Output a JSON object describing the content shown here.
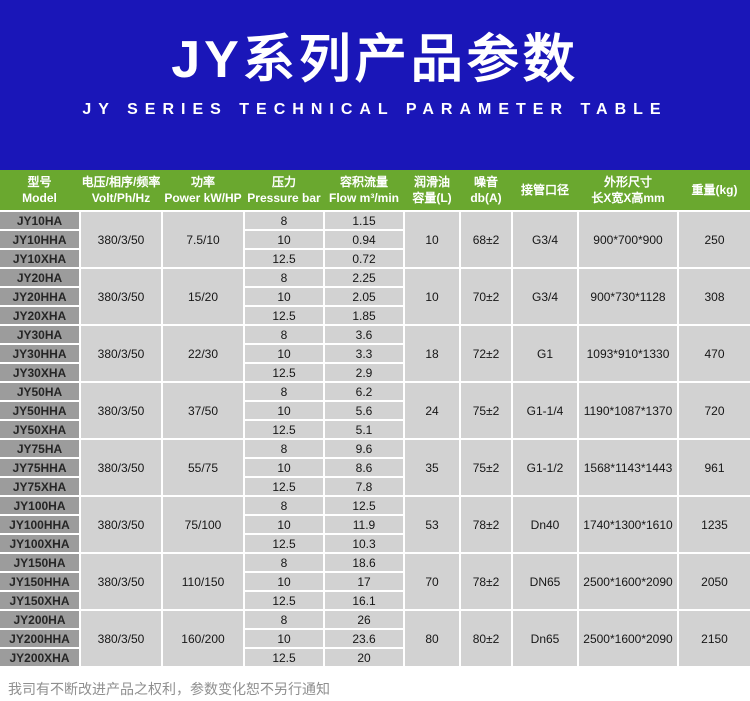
{
  "banner": {
    "title": "JY系列产品参数",
    "subtitle": "JY SERIES TECHNICAL PARAMETER TABLE"
  },
  "colors": {
    "banner_blue": "#1a16b8",
    "header_green": "#6aa82f",
    "model_gray": "#9c9c9c",
    "cell_gray": "#d2d2d2"
  },
  "table": {
    "headers": [
      {
        "line1": "型号",
        "line2": "Model"
      },
      {
        "line1": "电压/相序/频率",
        "line2": "Volt/Ph/Hz"
      },
      {
        "line1": "功率",
        "line2": "Power kW/HP"
      },
      {
        "line1": "压力",
        "line2": "Pressure bar"
      },
      {
        "line1": "容积流量",
        "line2": "Flow m³/min"
      },
      {
        "line1": "润滑油",
        "line2": "容量(L)"
      },
      {
        "line1": "噪音",
        "line2": "db(A)"
      },
      {
        "line1": "接管口径",
        "line2": ""
      },
      {
        "line1": "外形尺寸",
        "line2": "长X宽X高mm"
      },
      {
        "line1": "重量(kg)",
        "line2": ""
      }
    ],
    "groups": [
      {
        "models": [
          "JY10HA",
          "JY10HHA",
          "JY10XHA"
        ],
        "volt": "380/3/50",
        "power": "7.5/10",
        "pressure": [
          "8",
          "10",
          "12.5"
        ],
        "flow": [
          "1.15",
          "0.94",
          "0.72"
        ],
        "oil": "10",
        "noise": "68±2",
        "pipe": "G3/4",
        "dims": "900*700*900",
        "weight": "250"
      },
      {
        "models": [
          "JY20HA",
          "JY20HHA",
          "JY20XHA"
        ],
        "volt": "380/3/50",
        "power": "15/20",
        "pressure": [
          "8",
          "10",
          "12.5"
        ],
        "flow": [
          "2.25",
          "2.05",
          "1.85"
        ],
        "oil": "10",
        "noise": "70±2",
        "pipe": "G3/4",
        "dims": "900*730*1128",
        "weight": "308"
      },
      {
        "models": [
          "JY30HA",
          "JY30HHA",
          "JY30XHA"
        ],
        "volt": "380/3/50",
        "power": "22/30",
        "pressure": [
          "8",
          "10",
          "12.5"
        ],
        "flow": [
          "3.6",
          "3.3",
          "2.9"
        ],
        "oil": "18",
        "noise": "72±2",
        "pipe": "G1",
        "dims": "1093*910*1330",
        "weight": "470"
      },
      {
        "models": [
          "JY50HA",
          "JY50HHA",
          "JY50XHA"
        ],
        "volt": "380/3/50",
        "power": "37/50",
        "pressure": [
          "8",
          "10",
          "12.5"
        ],
        "flow": [
          "6.2",
          "5.6",
          "5.1"
        ],
        "oil": "24",
        "noise": "75±2",
        "pipe": "G1-1/4",
        "dims": "1190*1087*1370",
        "weight": "720"
      },
      {
        "models": [
          "JY75HA",
          "JY75HHA",
          "JY75XHA"
        ],
        "volt": "380/3/50",
        "power": "55/75",
        "pressure": [
          "8",
          "10",
          "12.5"
        ],
        "flow": [
          "9.6",
          "8.6",
          "7.8"
        ],
        "oil": "35",
        "noise": "75±2",
        "pipe": "G1-1/2",
        "dims": "1568*1143*1443",
        "weight": "961"
      },
      {
        "models": [
          "JY100HA",
          "JY100HHA",
          "JY100XHA"
        ],
        "volt": "380/3/50",
        "power": "75/100",
        "pressure": [
          "8",
          "10",
          "12.5"
        ],
        "flow": [
          "12.5",
          "11.9",
          "10.3"
        ],
        "oil": "53",
        "noise": "78±2",
        "pipe": "Dn40",
        "dims": "1740*1300*1610",
        "weight": "1235"
      },
      {
        "models": [
          "JY150HA",
          "JY150HHA",
          "JY150XHA"
        ],
        "volt": "380/3/50",
        "power": "110/150",
        "pressure": [
          "8",
          "10",
          "12.5"
        ],
        "flow": [
          "18.6",
          "17",
          "16.1"
        ],
        "oil": "70",
        "noise": "78±2",
        "pipe": "DN65",
        "dims": "2500*1600*2090",
        "weight": "2050"
      },
      {
        "models": [
          "JY200HA",
          "JY200HHA",
          "JY200XHA"
        ],
        "volt": "380/3/50",
        "power": "160/200",
        "pressure": [
          "8",
          "10",
          "12.5"
        ],
        "flow": [
          "26",
          "23.6",
          "20"
        ],
        "oil": "80",
        "noise": "80±2",
        "pipe": "Dn65",
        "dims": "2500*1600*2090",
        "weight": "2150"
      }
    ]
  },
  "footer": {
    "note": "我司有不断改进产品之权利，参数变化恕不另行通知"
  }
}
